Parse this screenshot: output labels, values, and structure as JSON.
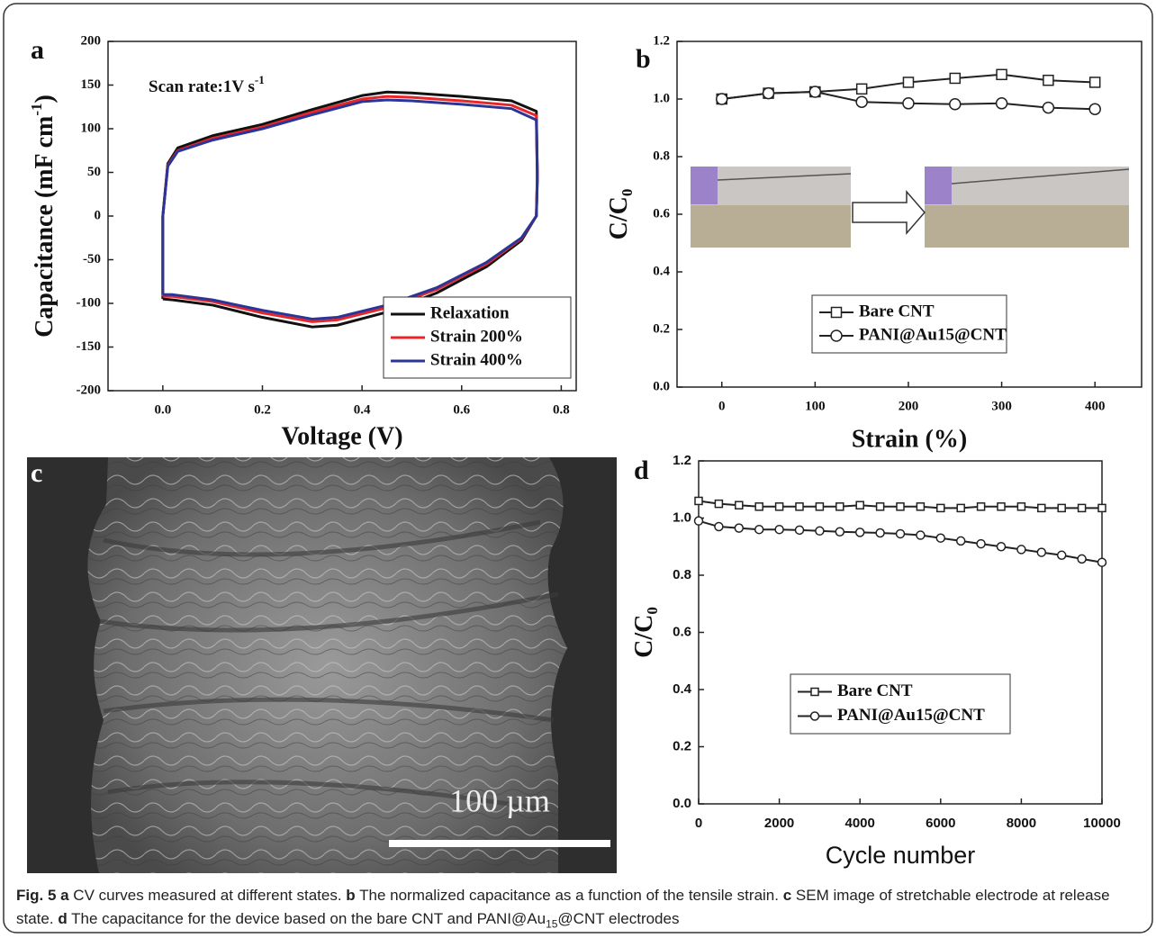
{
  "chart_data": [
    {
      "type": "line",
      "label": "a",
      "xlabel": "Voltage (V)",
      "ylabel": "Capacitance (mF cm",
      "ylabel_sup": "-1",
      "ylabel_end": ")",
      "annotation": "Scan rate:1V s",
      "annotation_sup": "-1",
      "xlim": [
        -0.11,
        0.83
      ],
      "ylim": [
        -200,
        200
      ],
      "xticks": [
        {
          "value": 0,
          "label": "0.0"
        },
        0.2,
        0.4,
        0.6,
        0.8
      ],
      "yticks": [
        -200,
        -150,
        -100,
        -50,
        0,
        50,
        100,
        150,
        200
      ],
      "legend": "lower right",
      "series": [
        {
          "name": "Relaxation",
          "color": "#111111",
          "x": [
            0,
            0,
            0.01,
            0.03,
            0.1,
            0.2,
            0.3,
            0.4,
            0.45,
            0.5,
            0.6,
            0.7,
            0.75,
            0.752,
            0.75,
            0.72,
            0.65,
            0.55,
            0.45,
            0.35,
            0.3,
            0.2,
            0.1,
            0.02,
            0
          ],
          "values": [
            -95,
            0,
            60,
            78,
            92,
            105,
            122,
            138,
            142,
            141,
            137,
            132,
            120,
            50,
            0,
            -28,
            -58,
            -88,
            -110,
            -125,
            -127,
            -116,
            -102,
            -96,
            -95
          ]
        },
        {
          "name": "Strain 200%",
          "color": "#e8262a",
          "x": [
            0,
            0,
            0.01,
            0.03,
            0.1,
            0.2,
            0.3,
            0.4,
            0.45,
            0.5,
            0.6,
            0.7,
            0.75,
            0.752,
            0.75,
            0.72,
            0.65,
            0.55,
            0.45,
            0.35,
            0.3,
            0.2,
            0.1,
            0.02,
            0
          ],
          "values": [
            -92,
            0,
            58,
            75,
            89,
            102,
            119,
            134,
            137,
            136,
            132,
            127,
            115,
            45,
            0,
            -26,
            -55,
            -84,
            -105,
            -119,
            -121,
            -111,
            -98,
            -92,
            -92
          ]
        },
        {
          "name": "Strain 400%",
          "color": "#2b3596",
          "x": [
            0,
            0,
            0.01,
            0.03,
            0.1,
            0.2,
            0.3,
            0.4,
            0.45,
            0.5,
            0.6,
            0.7,
            0.75,
            0.752,
            0.75,
            0.72,
            0.65,
            0.55,
            0.45,
            0.35,
            0.3,
            0.2,
            0.1,
            0.02,
            0
          ],
          "values": [
            -90,
            0,
            57,
            74,
            87,
            100,
            116,
            131,
            133,
            132,
            128,
            123,
            110,
            40,
            0,
            -25,
            -53,
            -82,
            -102,
            -116,
            -118,
            -108,
            -96,
            -90,
            -90
          ]
        }
      ]
    },
    {
      "type": "line",
      "label": "b",
      "xlabel": "Strain (%)",
      "ylabel": "C/C",
      "ylabel_sub": "0",
      "xlim": [
        -48,
        450
      ],
      "ylim": [
        0,
        1.2
      ],
      "xticks": [
        0,
        100,
        200,
        300,
        400
      ],
      "yticks": [
        {
          "value": 0,
          "label": "0.0"
        },
        0.2,
        0.4,
        0.6,
        0.8,
        {
          "value": 1,
          "label": "1.0"
        },
        1.2
      ],
      "legend": "lower center",
      "x": [
        0,
        50,
        100,
        150,
        200,
        250,
        300,
        350,
        400
      ],
      "series": [
        {
          "name": "Bare CNT",
          "color": "#222222",
          "marker": "square",
          "values": [
            1.0,
            1.02,
            1.025,
            1.035,
            1.058,
            1.072,
            1.085,
            1.065,
            1.058
          ]
        },
        {
          "name": "PANI@Au15@CNT",
          "color": "#222222",
          "marker": "circle",
          "values": [
            1.0,
            1.02,
            1.025,
            0.99,
            0.985,
            0.982,
            0.985,
            0.97,
            0.965
          ]
        }
      ]
    },
    {
      "type": "line",
      "label": "d",
      "xlabel": "Cycle number",
      "ylabel": "C/C",
      "ylabel_sub": "0",
      "xlim": [
        0,
        10000
      ],
      "ylim": [
        0,
        1.2
      ],
      "xticks": [
        0,
        2000,
        4000,
        6000,
        8000,
        10000
      ],
      "yticks": [
        {
          "value": 0,
          "label": "0.0"
        },
        0.2,
        0.4,
        0.6,
        0.8,
        {
          "value": 1,
          "label": "1.0"
        },
        1.2
      ],
      "legend": "lower center",
      "x": [
        0,
        500,
        1000,
        1500,
        2000,
        2500,
        3000,
        3500,
        4000,
        4500,
        5000,
        5500,
        6000,
        6500,
        7000,
        7500,
        8000,
        8500,
        9000,
        9500,
        10000
      ],
      "series": [
        {
          "name": "Bare CNT",
          "color": "#222222",
          "marker": "square",
          "values": [
            1.06,
            1.05,
            1.045,
            1.04,
            1.04,
            1.04,
            1.04,
            1.04,
            1.045,
            1.04,
            1.04,
            1.04,
            1.035,
            1.035,
            1.04,
            1.04,
            1.04,
            1.035,
            1.035,
            1.035,
            1.035
          ]
        },
        {
          "name": "PANI@Au15@CNT",
          "color": "#222222",
          "marker": "circle",
          "values": [
            0.99,
            0.97,
            0.965,
            0.96,
            0.96,
            0.958,
            0.955,
            0.952,
            0.95,
            0.948,
            0.945,
            0.94,
            0.93,
            0.92,
            0.91,
            0.9,
            0.89,
            0.88,
            0.87,
            0.857,
            0.845
          ]
        }
      ]
    }
  ],
  "panel_c": {
    "label": "c",
    "scale_bar": "100 µm"
  },
  "caption": [
    {
      "text": "Fig. 5 a",
      "bold": true
    },
    {
      "text": " CV curves measured at different states. "
    },
    {
      "text": "b",
      "bold": true
    },
    {
      "text": " The normalized capacitance as a function of the tensile strain. "
    },
    {
      "text": "c",
      "bold": true
    },
    {
      "text": " SEM image of stretchable electrode at release state. "
    },
    {
      "text": "d",
      "bold": true
    },
    {
      "text": " The capacitance for the device based on the bare CNT and PANI@Au"
    },
    {
      "text": "15",
      "sub": true
    },
    {
      "text": "@CNT electrodes"
    }
  ]
}
